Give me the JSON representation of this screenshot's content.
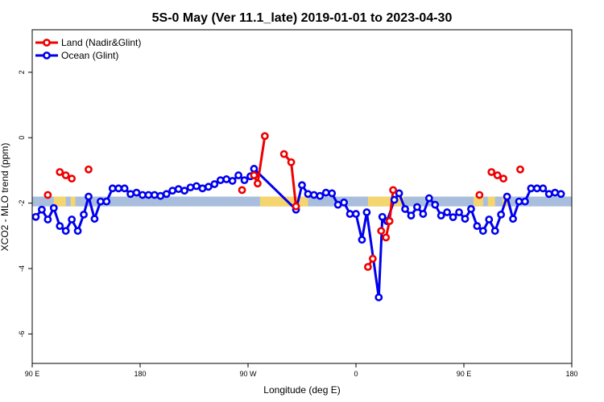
{
  "chart_data": {
    "type": "line",
    "title": "5S-0 May (Ver 11.1_late)   2019-01-01 to 2023-04-30",
    "xlabel": "Longitude (deg E)",
    "ylabel": "XCO2 - MLO trend (ppm)",
    "x_ticks": [
      {
        "value": 90,
        "label": "90 E"
      },
      {
        "value": 180,
        "label": "180"
      },
      {
        "value": 270,
        "label": "90 W"
      },
      {
        "value": 360,
        "label": "0"
      },
      {
        "value": 450,
        "label": "90 E"
      },
      {
        "value": 540,
        "label": "180"
      }
    ],
    "y_ticks": [
      {
        "value": 2,
        "label": "2"
      },
      {
        "value": 0,
        "label": "0"
      },
      {
        "value": -2,
        "label": "-2"
      },
      {
        "value": -4,
        "label": "-4"
      },
      {
        "value": -6,
        "label": "-6"
      }
    ],
    "xlim": [
      90,
      540
    ],
    "ylim": [
      -6.9,
      3.3
    ],
    "legend_position": "top-left",
    "background_band": {
      "y_range": [
        -2.1,
        -1.8
      ],
      "color": "#a9bedd",
      "land_color": "#f5d56e",
      "land_segments": [
        [
          108,
          118
        ],
        [
          122,
          126
        ],
        [
          280,
          320
        ],
        [
          370,
          400
        ],
        [
          458,
          466
        ],
        [
          470,
          476
        ],
        [
          482,
          487
        ]
      ]
    },
    "series": [
      {
        "name": "Land (Nadir&Glint)",
        "color": "#ee0000",
        "points": [
          [
            103,
            -1.75
          ],
          [
            113,
            -1.05
          ],
          [
            118,
            -1.15
          ],
          [
            123,
            -1.25
          ],
          [
            137,
            -0.97
          ],
          [
            265,
            -1.6
          ],
          [
            275,
            -1.15
          ],
          [
            278,
            -1.4
          ],
          [
            284,
            0.05
          ],
          [
            300,
            -0.5
          ],
          [
            306,
            -0.75
          ],
          [
            310,
            -2.1
          ],
          [
            370,
            -3.95
          ],
          [
            374,
            -3.7
          ],
          [
            381,
            -2.85
          ],
          [
            385,
            -3.05
          ],
          [
            388,
            -2.55
          ],
          [
            391,
            -1.6
          ],
          [
            463,
            -1.75
          ],
          [
            473,
            -1.05
          ],
          [
            478,
            -1.15
          ],
          [
            483,
            -1.25
          ],
          [
            497,
            -0.97
          ]
        ],
        "segments": [
          [
            [
              275,
              -1.15
            ],
            [
              278,
              -1.4
            ]
          ],
          [
            [
              278,
              -1.4
            ],
            [
              284,
              0.05
            ]
          ],
          [
            [
              300,
              -0.5
            ],
            [
              306,
              -0.75
            ]
          ],
          [
            [
              306,
              -0.75
            ],
            [
              310,
              -2.1
            ]
          ],
          [
            [
              370,
              -3.95
            ],
            [
              374,
              -3.7
            ]
          ],
          [
            [
              385,
              -3.05
            ],
            [
              388,
              -2.55
            ]
          ],
          [
            [
              388,
              -2.55
            ],
            [
              391,
              -1.6
            ]
          ],
          [
            [
              473,
              -1.05
            ],
            [
              478,
              -1.15
            ]
          ],
          [
            [
              478,
              -1.15
            ],
            [
              483,
              -1.25
            ]
          ],
          [
            [
              113,
              -1.05
            ],
            [
              118,
              -1.15
            ]
          ],
          [
            [
              118,
              -1.15
            ],
            [
              123,
              -1.25
            ]
          ]
        ]
      },
      {
        "name": "Ocean (Glint)",
        "color": "#0000ee",
        "points": [
          [
            93,
            -2.42
          ],
          [
            98,
            -2.2
          ],
          [
            103,
            -2.5
          ],
          [
            108,
            -2.15
          ],
          [
            113,
            -2.7
          ],
          [
            118,
            -2.85
          ],
          [
            123,
            -2.5
          ],
          [
            128,
            -2.85
          ],
          [
            133,
            -2.35
          ],
          [
            137,
            -1.8
          ],
          [
            142,
            -2.48
          ],
          [
            147,
            -1.95
          ],
          [
            152,
            -1.95
          ],
          [
            157,
            -1.55
          ],
          [
            162,
            -1.55
          ],
          [
            167,
            -1.55
          ],
          [
            172,
            -1.72
          ],
          [
            177,
            -1.68
          ],
          [
            182,
            -1.75
          ],
          [
            187,
            -1.75
          ],
          [
            192,
            -1.75
          ],
          [
            197,
            -1.78
          ],
          [
            202,
            -1.72
          ],
          [
            207,
            -1.62
          ],
          [
            212,
            -1.57
          ],
          [
            217,
            -1.62
          ],
          [
            222,
            -1.52
          ],
          [
            227,
            -1.48
          ],
          [
            232,
            -1.55
          ],
          [
            237,
            -1.5
          ],
          [
            242,
            -1.42
          ],
          [
            247,
            -1.3
          ],
          [
            252,
            -1.27
          ],
          [
            257,
            -1.32
          ],
          [
            262,
            -1.15
          ],
          [
            267,
            -1.3
          ],
          [
            272,
            -1.18
          ],
          [
            275,
            -0.95
          ],
          [
            310,
            -2.2
          ],
          [
            315,
            -1.45
          ],
          [
            320,
            -1.72
          ],
          [
            325,
            -1.75
          ],
          [
            330,
            -1.78
          ],
          [
            335,
            -1.68
          ],
          [
            340,
            -1.7
          ],
          [
            345,
            -2.05
          ],
          [
            350,
            -1.98
          ],
          [
            355,
            -2.33
          ],
          [
            360,
            -2.33
          ],
          [
            365,
            -3.12
          ],
          [
            369,
            -2.28
          ],
          [
            379,
            -4.88
          ],
          [
            382,
            -2.42
          ],
          [
            386,
            -2.55
          ],
          [
            392,
            -1.9
          ],
          [
            396,
            -1.7
          ],
          [
            401,
            -2.18
          ],
          [
            406,
            -2.38
          ],
          [
            411,
            -2.12
          ],
          [
            416,
            -2.33
          ],
          [
            421,
            -1.85
          ],
          [
            426,
            -2.05
          ],
          [
            431,
            -2.38
          ],
          [
            436,
            -2.28
          ],
          [
            441,
            -2.43
          ],
          [
            446,
            -2.28
          ],
          [
            451,
            -2.48
          ],
          [
            456,
            -2.18
          ],
          [
            461,
            -2.7
          ],
          [
            466,
            -2.85
          ],
          [
            471,
            -2.5
          ],
          [
            476,
            -2.85
          ],
          [
            481,
            -2.35
          ],
          [
            486,
            -1.8
          ],
          [
            491,
            -2.48
          ],
          [
            496,
            -1.95
          ],
          [
            501,
            -1.95
          ],
          [
            506,
            -1.55
          ],
          [
            511,
            -1.55
          ],
          [
            516,
            -1.55
          ],
          [
            521,
            -1.72
          ],
          [
            526,
            -1.68
          ],
          [
            531,
            -1.72
          ]
        ]
      }
    ]
  }
}
